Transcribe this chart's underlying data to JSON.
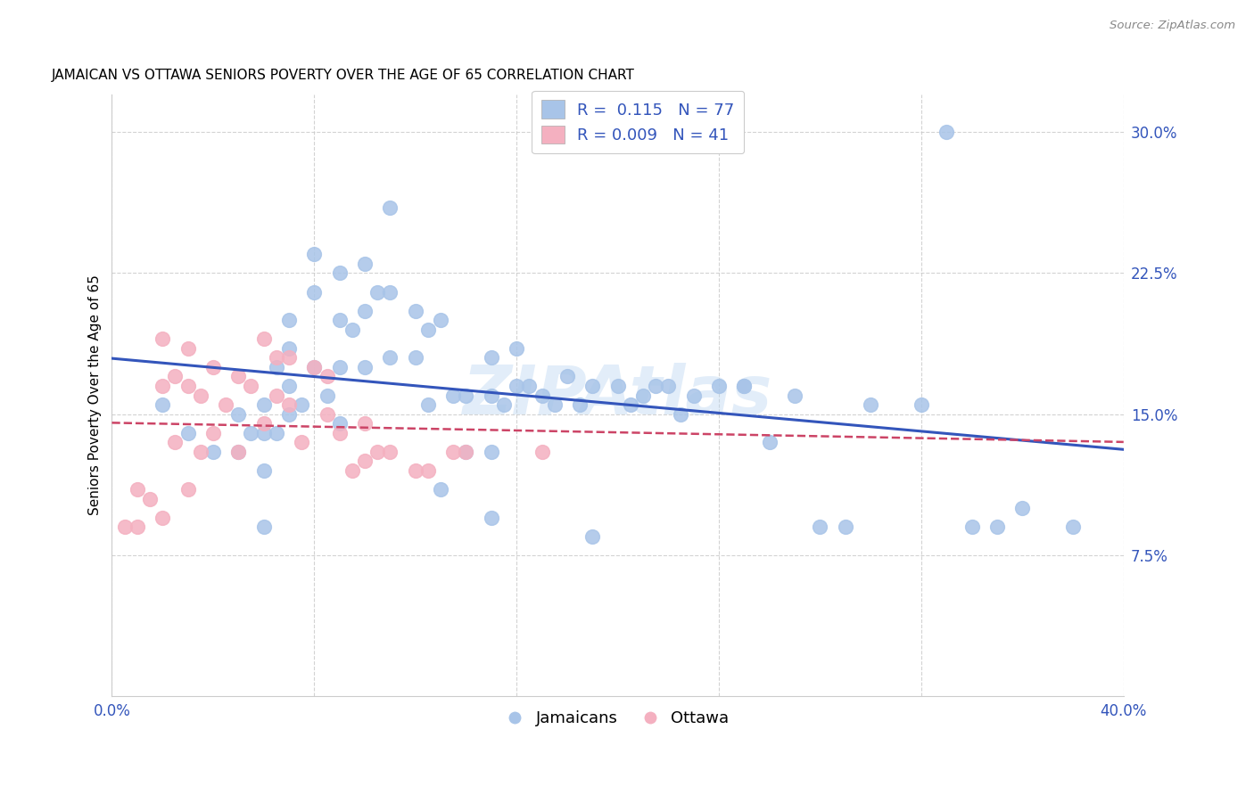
{
  "title": "JAMAICAN VS OTTAWA SENIORS POVERTY OVER THE AGE OF 65 CORRELATION CHART",
  "source": "Source: ZipAtlas.com",
  "ylabel": "Seniors Poverty Over the Age of 65",
  "xlim": [
    0.0,
    0.4
  ],
  "ylim": [
    0.0,
    0.32
  ],
  "yticks": [
    0.075,
    0.15,
    0.225,
    0.3
  ],
  "ytick_labels": [
    "7.5%",
    "15.0%",
    "22.5%",
    "30.0%"
  ],
  "xticks": [
    0.0,
    0.08,
    0.16,
    0.24,
    0.32,
    0.4
  ],
  "xtick_labels": [
    "0.0%",
    "",
    "",
    "",
    "",
    "40.0%"
  ],
  "background_color": "#ffffff",
  "grid_color": "#c8c8c8",
  "jamaicans_color": "#a8c4e8",
  "ottawa_color": "#f4b0c0",
  "trendline_jamaicans_color": "#3355bb",
  "trendline_ottawa_color": "#cc4466",
  "legend_r_jamaicans": "0.115",
  "legend_n_jamaicans": "77",
  "legend_r_ottawa": "0.009",
  "legend_n_ottawa": "41",
  "watermark": "ZIPAtlas",
  "jamaicans_x": [
    0.02,
    0.03,
    0.04,
    0.05,
    0.05,
    0.055,
    0.06,
    0.06,
    0.06,
    0.06,
    0.065,
    0.065,
    0.07,
    0.07,
    0.07,
    0.07,
    0.075,
    0.08,
    0.08,
    0.08,
    0.085,
    0.09,
    0.09,
    0.09,
    0.09,
    0.095,
    0.1,
    0.1,
    0.1,
    0.105,
    0.11,
    0.11,
    0.11,
    0.12,
    0.12,
    0.125,
    0.125,
    0.13,
    0.13,
    0.135,
    0.14,
    0.14,
    0.15,
    0.15,
    0.15,
    0.155,
    0.16,
    0.16,
    0.165,
    0.17,
    0.175,
    0.18,
    0.185,
    0.19,
    0.2,
    0.205,
    0.21,
    0.215,
    0.22,
    0.225,
    0.23,
    0.24,
    0.25,
    0.26,
    0.27,
    0.28,
    0.29,
    0.3,
    0.32,
    0.33,
    0.34,
    0.35,
    0.36,
    0.38,
    0.25,
    0.19,
    0.15
  ],
  "jamaicans_y": [
    0.155,
    0.14,
    0.13,
    0.15,
    0.13,
    0.14,
    0.155,
    0.14,
    0.12,
    0.09,
    0.175,
    0.14,
    0.2,
    0.185,
    0.165,
    0.15,
    0.155,
    0.235,
    0.215,
    0.175,
    0.16,
    0.225,
    0.2,
    0.175,
    0.145,
    0.195,
    0.23,
    0.205,
    0.175,
    0.215,
    0.26,
    0.215,
    0.18,
    0.205,
    0.18,
    0.195,
    0.155,
    0.2,
    0.11,
    0.16,
    0.16,
    0.13,
    0.18,
    0.16,
    0.13,
    0.155,
    0.185,
    0.165,
    0.165,
    0.16,
    0.155,
    0.17,
    0.155,
    0.165,
    0.165,
    0.155,
    0.16,
    0.165,
    0.165,
    0.15,
    0.16,
    0.165,
    0.165,
    0.135,
    0.16,
    0.09,
    0.09,
    0.155,
    0.155,
    0.3,
    0.09,
    0.09,
    0.1,
    0.09,
    0.165,
    0.085,
    0.095
  ],
  "ottawa_x": [
    0.005,
    0.01,
    0.01,
    0.015,
    0.02,
    0.02,
    0.02,
    0.025,
    0.025,
    0.03,
    0.03,
    0.03,
    0.035,
    0.035,
    0.04,
    0.04,
    0.045,
    0.05,
    0.05,
    0.055,
    0.06,
    0.06,
    0.065,
    0.065,
    0.07,
    0.07,
    0.075,
    0.08,
    0.085,
    0.085,
    0.09,
    0.095,
    0.1,
    0.1,
    0.105,
    0.11,
    0.12,
    0.125,
    0.135,
    0.14,
    0.17
  ],
  "ottawa_y": [
    0.09,
    0.11,
    0.09,
    0.105,
    0.19,
    0.165,
    0.095,
    0.17,
    0.135,
    0.185,
    0.165,
    0.11,
    0.16,
    0.13,
    0.175,
    0.14,
    0.155,
    0.17,
    0.13,
    0.165,
    0.19,
    0.145,
    0.18,
    0.16,
    0.18,
    0.155,
    0.135,
    0.175,
    0.17,
    0.15,
    0.14,
    0.12,
    0.145,
    0.125,
    0.13,
    0.13,
    0.12,
    0.12,
    0.13,
    0.13,
    0.13
  ]
}
